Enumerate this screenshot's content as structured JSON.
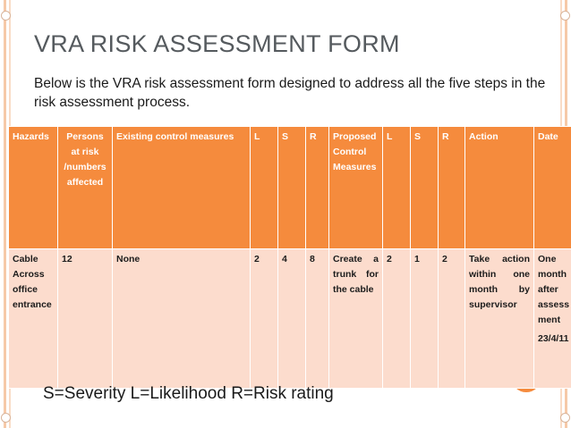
{
  "slide": {
    "title": "VRA RISK ASSESSMENT FORM",
    "subtitle": "Below is the VRA risk assessment form designed to address all the five steps in the risk assessment process.",
    "legend": "S=Severity  L=Likelihood R=Risk rating"
  },
  "table": {
    "headers": {
      "hazards": "Hazards",
      "persons": "Persons at risk /numbers affected",
      "existing": "Existing control measures",
      "l1": "L",
      "s1": "S",
      "r1": "R",
      "proposed": "Proposed Control Measures",
      "l2": "L",
      "s2": "S",
      "r2": "R",
      "action": "Action",
      "date": "Date"
    },
    "row": {
      "hazards": "Cable Across office entrance",
      "persons": "12",
      "existing": "None",
      "l1": "2",
      "s1": "4",
      "r1": "8",
      "proposed": "Create a trunk for the cable",
      "l2": "2",
      "s2": "1",
      "r2": "2",
      "action": "Take action within one month by supervisor",
      "date": "One month after assessment",
      "date_value": "23/4/11"
    }
  },
  "colors": {
    "header_bg": "#f58b3d",
    "row_bg": "#fcdccd",
    "accent": "#f58b3d"
  }
}
